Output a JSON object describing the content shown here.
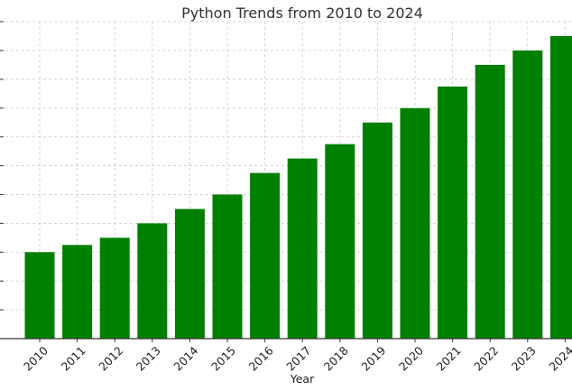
{
  "chart_data": {
    "type": "bar",
    "title": "Python Trends from 2010 to 2024",
    "xlabel": "Year",
    "ylabel": "",
    "categories": [
      "2010",
      "2011",
      "2012",
      "2013",
      "2014",
      "2015",
      "2016",
      "2017",
      "2018",
      "2019",
      "2020",
      "2021",
      "2022",
      "2023",
      "2024"
    ],
    "values": [
      12,
      13,
      14,
      16,
      18,
      20,
      23,
      25,
      27,
      30,
      32,
      35,
      38,
      40,
      42
    ],
    "ylim": [
      0,
      44
    ],
    "grid": true,
    "bar_color": "#008000"
  }
}
